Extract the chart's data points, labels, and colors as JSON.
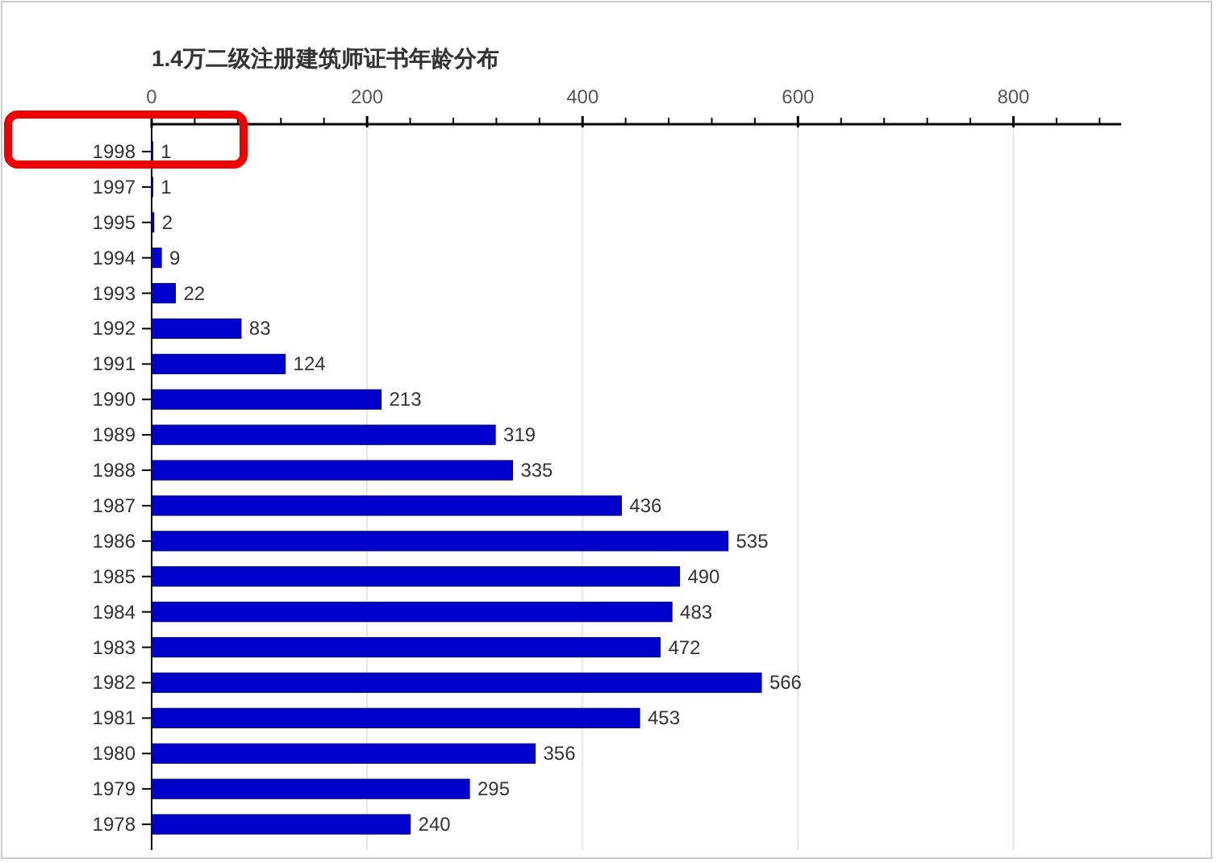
{
  "chart_data": {
    "type": "bar",
    "orientation": "horizontal",
    "title": "1.4万二级注册建筑师证书年龄分布",
    "categories": [
      "1998",
      "1997",
      "1995",
      "1994",
      "1993",
      "1992",
      "1991",
      "1990",
      "1989",
      "1988",
      "1987",
      "1986",
      "1985",
      "1984",
      "1983",
      "1982",
      "1981",
      "1980",
      "1979",
      "1978"
    ],
    "values": [
      1,
      1,
      2,
      9,
      22,
      83,
      124,
      213,
      319,
      335,
      436,
      535,
      490,
      483,
      472,
      566,
      453,
      356,
      295,
      240
    ],
    "color": "#0000cc",
    "data_labels": true,
    "grid": "x",
    "xlim": [
      0,
      900
    ],
    "xticks": [
      0,
      {
        "value": 40,
        "label": null
      },
      {
        "value": 80,
        "label": null
      },
      {
        "value": 120,
        "label": null
      },
      {
        "value": 160,
        "label": null
      },
      200,
      {
        "value": 240,
        "label": null
      },
      {
        "value": 280,
        "label": null
      },
      {
        "value": 320,
        "label": null
      },
      {
        "value": 360,
        "label": null
      },
      400,
      {
        "value": 440,
        "label": null
      },
      {
        "value": 480,
        "label": null
      },
      {
        "value": 520,
        "label": null
      },
      {
        "value": 560,
        "label": null
      },
      600,
      {
        "value": 640,
        "label": null
      },
      {
        "value": 680,
        "label": null
      },
      {
        "value": 720,
        "label": null
      },
      {
        "value": 760,
        "label": null
      },
      800,
      {
        "value": 840,
        "label": null
      },
      {
        "value": 880,
        "label": null
      }
    ]
  }
}
